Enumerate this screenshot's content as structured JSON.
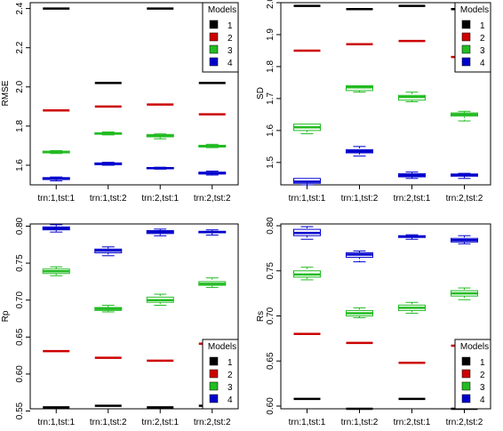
{
  "chart_data": [
    {
      "type": "boxplot",
      "ylabel": "RMSE",
      "ylim": [
        1.5,
        2.43
      ],
      "yticks": [
        1.6,
        1.8,
        2.0,
        2.2,
        2.4
      ],
      "ytick_labels": [
        "1.6",
        "1.8",
        "2.0",
        "2.2",
        "2.4"
      ],
      "categories": [
        "trn:1,tst:1",
        "trn:1,tst:2",
        "trn:2,tst:1",
        "trn:2,tst:2"
      ],
      "legend": {
        "title": "Models",
        "position": "top-right"
      },
      "series": [
        {
          "name": "1",
          "color": "#000000",
          "boxes": [
            {
              "min": 2.4,
              "q1": 2.4,
              "median": 2.4,
              "q3": 2.4,
              "max": 2.4
            },
            {
              "min": 2.02,
              "q1": 2.02,
              "median": 2.02,
              "q3": 2.02,
              "max": 2.02
            },
            {
              "min": 2.4,
              "q1": 2.4,
              "median": 2.4,
              "q3": 2.4,
              "max": 2.4
            },
            {
              "min": 2.02,
              "q1": 2.02,
              "median": 2.02,
              "q3": 2.02,
              "max": 2.02
            }
          ]
        },
        {
          "name": "2",
          "color": "#cc0000",
          "boxes": [
            {
              "min": 1.88,
              "q1": 1.88,
              "median": 1.88,
              "q3": 1.88,
              "max": 1.88
            },
            {
              "min": 1.9,
              "q1": 1.9,
              "median": 1.9,
              "q3": 1.9,
              "max": 1.9
            },
            {
              "min": 1.91,
              "q1": 1.91,
              "median": 1.91,
              "q3": 1.91,
              "max": 1.91
            },
            {
              "min": 1.86,
              "q1": 1.86,
              "median": 1.86,
              "q3": 1.86,
              "max": 1.86
            }
          ]
        },
        {
          "name": "3",
          "color": "#22bb22",
          "boxes": [
            {
              "min": 1.66,
              "q1": 1.663,
              "median": 1.667,
              "q3": 1.672,
              "max": 1.675
            },
            {
              "min": 1.755,
              "q1": 1.758,
              "median": 1.762,
              "q3": 1.766,
              "max": 1.77
            },
            {
              "min": 1.735,
              "q1": 1.745,
              "median": 1.75,
              "q3": 1.757,
              "max": 1.76
            },
            {
              "min": 1.69,
              "q1": 1.693,
              "median": 1.697,
              "q3": 1.702,
              "max": 1.707
            }
          ]
        },
        {
          "name": "4",
          "color": "#0000cc",
          "boxes": [
            {
              "min": 1.52,
              "q1": 1.527,
              "median": 1.532,
              "q3": 1.537,
              "max": 1.54
            },
            {
              "min": 1.6,
              "q1": 1.603,
              "median": 1.607,
              "q3": 1.612,
              "max": 1.615
            },
            {
              "min": 1.58,
              "q1": 1.582,
              "median": 1.585,
              "q3": 1.588,
              "max": 1.59
            },
            {
              "min": 1.55,
              "q1": 1.555,
              "median": 1.56,
              "q3": 1.565,
              "max": 1.57
            }
          ]
        }
      ]
    },
    {
      "type": "boxplot",
      "ylabel": "SD",
      "ylim": [
        1.43,
        2.0
      ],
      "yticks": [
        1.5,
        1.6,
        1.7,
        1.8,
        1.9,
        2.0
      ],
      "ytick_labels": [
        "1.5",
        "1.6",
        "1.7",
        "1.8",
        "1.9",
        "2.0"
      ],
      "categories": [
        "trn:1,tst:1",
        "trn:1,tst:2",
        "trn:2,tst:1",
        "trn:2,tst:2"
      ],
      "legend": {
        "title": "Models",
        "position": "top-right"
      },
      "series": [
        {
          "name": "1",
          "color": "#000000",
          "boxes": [
            {
              "min": 1.99,
              "q1": 1.99,
              "median": 1.99,
              "q3": 1.99,
              "max": 1.99
            },
            {
              "min": 1.98,
              "q1": 1.98,
              "median": 1.98,
              "q3": 1.98,
              "max": 1.98
            },
            {
              "min": 1.99,
              "q1": 1.99,
              "median": 1.99,
              "q3": 1.99,
              "max": 1.99
            },
            {
              "min": 1.98,
              "q1": 1.98,
              "median": 1.98,
              "q3": 1.98,
              "max": 1.98
            }
          ]
        },
        {
          "name": "2",
          "color": "#cc0000",
          "boxes": [
            {
              "min": 1.85,
              "q1": 1.85,
              "median": 1.85,
              "q3": 1.85,
              "max": 1.85
            },
            {
              "min": 1.87,
              "q1": 1.87,
              "median": 1.87,
              "q3": 1.87,
              "max": 1.87
            },
            {
              "min": 1.88,
              "q1": 1.88,
              "median": 1.88,
              "q3": 1.88,
              "max": 1.88
            },
            {
              "min": 1.83,
              "q1": 1.83,
              "median": 1.83,
              "q3": 1.83,
              "max": 1.83
            }
          ]
        },
        {
          "name": "3",
          "color": "#22bb22",
          "boxes": [
            {
              "min": 1.59,
              "q1": 1.6,
              "median": 1.61,
              "q3": 1.62,
              "max": 1.62
            },
            {
              "min": 1.72,
              "q1": 1.725,
              "median": 1.735,
              "q3": 1.74,
              "max": 1.74
            },
            {
              "min": 1.69,
              "q1": 1.695,
              "median": 1.705,
              "q3": 1.71,
              "max": 1.72
            },
            {
              "min": 1.63,
              "q1": 1.645,
              "median": 1.65,
              "q3": 1.655,
              "max": 1.66
            }
          ]
        },
        {
          "name": "4",
          "color": "#0000cc",
          "boxes": [
            {
              "min": 1.43,
              "q1": 1.435,
              "median": 1.44,
              "q3": 1.45,
              "max": 1.45
            },
            {
              "min": 1.52,
              "q1": 1.53,
              "median": 1.535,
              "q3": 1.54,
              "max": 1.55
            },
            {
              "min": 1.45,
              "q1": 1.455,
              "median": 1.46,
              "q3": 1.465,
              "max": 1.47
            },
            {
              "min": 1.45,
              "q1": 1.457,
              "median": 1.46,
              "q3": 1.464,
              "max": 1.466
            }
          ]
        }
      ]
    },
    {
      "type": "boxplot",
      "ylabel": "Rp",
      "ylim": [
        0.553,
        0.803
      ],
      "yticks": [
        0.55,
        0.6,
        0.65,
        0.7,
        0.75,
        0.8
      ],
      "ytick_labels": [
        "0.55",
        "0.60",
        "0.65",
        "0.70",
        "0.75",
        "0.80"
      ],
      "categories": [
        "trn:1,tst:1",
        "trn:1,tst:2",
        "trn:2,tst:1",
        "trn:2,tst:2"
      ],
      "legend": {
        "title": "Models",
        "position": "bottom-right"
      },
      "series": [
        {
          "name": "1",
          "color": "#000000",
          "boxes": [
            {
              "min": 0.555,
              "q1": 0.555,
              "median": 0.555,
              "q3": 0.555,
              "max": 0.555
            },
            {
              "min": 0.557,
              "q1": 0.557,
              "median": 0.557,
              "q3": 0.557,
              "max": 0.557
            },
            {
              "min": 0.555,
              "q1": 0.555,
              "median": 0.555,
              "q3": 0.555,
              "max": 0.555
            },
            {
              "min": 0.557,
              "q1": 0.557,
              "median": 0.557,
              "q3": 0.557,
              "max": 0.557
            }
          ]
        },
        {
          "name": "2",
          "color": "#cc0000",
          "boxes": [
            {
              "min": 0.631,
              "q1": 0.631,
              "median": 0.631,
              "q3": 0.631,
              "max": 0.631
            },
            {
              "min": 0.622,
              "q1": 0.622,
              "median": 0.622,
              "q3": 0.622,
              "max": 0.622
            },
            {
              "min": 0.618,
              "q1": 0.618,
              "median": 0.618,
              "q3": 0.618,
              "max": 0.618
            },
            {
              "min": 0.641,
              "q1": 0.641,
              "median": 0.641,
              "q3": 0.641,
              "max": 0.641
            }
          ]
        },
        {
          "name": "3",
          "color": "#22bb22",
          "boxes": [
            {
              "min": 0.733,
              "q1": 0.736,
              "median": 0.739,
              "q3": 0.742,
              "max": 0.745
            },
            {
              "min": 0.684,
              "q1": 0.686,
              "median": 0.688,
              "q3": 0.69,
              "max": 0.693
            },
            {
              "min": 0.693,
              "q1": 0.697,
              "median": 0.7,
              "q3": 0.704,
              "max": 0.708
            },
            {
              "min": 0.717,
              "q1": 0.72,
              "median": 0.722,
              "q3": 0.725,
              "max": 0.73
            }
          ]
        },
        {
          "name": "4",
          "color": "#0000cc",
          "boxes": [
            {
              "min": 0.792,
              "q1": 0.795,
              "median": 0.797,
              "q3": 0.799,
              "max": 0.802
            },
            {
              "min": 0.76,
              "q1": 0.764,
              "median": 0.767,
              "q3": 0.769,
              "max": 0.772
            },
            {
              "min": 0.787,
              "q1": 0.79,
              "median": 0.792,
              "q3": 0.794,
              "max": 0.796
            },
            {
              "min": 0.788,
              "q1": 0.791,
              "median": 0.792,
              "q3": 0.793,
              "max": 0.795
            }
          ]
        }
      ]
    },
    {
      "type": "boxplot",
      "ylabel": "Rs",
      "ylim": [
        0.597,
        0.802
      ],
      "yticks": [
        0.6,
        0.65,
        0.7,
        0.75,
        0.8
      ],
      "ytick_labels": [
        "0.60",
        "0.65",
        "0.70",
        "0.75",
        "0.80"
      ],
      "categories": [
        "trn:1,tst:1",
        "trn:1,tst:2",
        "trn:2,tst:1",
        "trn:2,tst:2"
      ],
      "legend": {
        "title": "Models",
        "position": "bottom-right"
      },
      "series": [
        {
          "name": "1",
          "color": "#000000",
          "boxes": [
            {
              "min": 0.608,
              "q1": 0.608,
              "median": 0.608,
              "q3": 0.608,
              "max": 0.608
            },
            {
              "min": 0.597,
              "q1": 0.597,
              "median": 0.597,
              "q3": 0.597,
              "max": 0.597
            },
            {
              "min": 0.608,
              "q1": 0.608,
              "median": 0.608,
              "q3": 0.608,
              "max": 0.608
            },
            {
              "min": 0.597,
              "q1": 0.597,
              "median": 0.597,
              "q3": 0.597,
              "max": 0.597
            }
          ]
        },
        {
          "name": "2",
          "color": "#cc0000",
          "boxes": [
            {
              "min": 0.68,
              "q1": 0.68,
              "median": 0.68,
              "q3": 0.68,
              "max": 0.68
            },
            {
              "min": 0.67,
              "q1": 0.67,
              "median": 0.67,
              "q3": 0.67,
              "max": 0.67
            },
            {
              "min": 0.648,
              "q1": 0.648,
              "median": 0.648,
              "q3": 0.648,
              "max": 0.648
            },
            {
              "min": 0.667,
              "q1": 0.667,
              "median": 0.667,
              "q3": 0.667,
              "max": 0.667
            }
          ]
        },
        {
          "name": "3",
          "color": "#22bb22",
          "boxes": [
            {
              "min": 0.74,
              "q1": 0.743,
              "median": 0.746,
              "q3": 0.75,
              "max": 0.754
            },
            {
              "min": 0.698,
              "q1": 0.7,
              "median": 0.703,
              "q3": 0.706,
              "max": 0.709
            },
            {
              "min": 0.703,
              "q1": 0.706,
              "median": 0.709,
              "q3": 0.712,
              "max": 0.715
            },
            {
              "min": 0.718,
              "q1": 0.722,
              "median": 0.725,
              "q3": 0.728,
              "max": 0.731
            }
          ]
        },
        {
          "name": "4",
          "color": "#0000cc",
          "boxes": [
            {
              "min": 0.785,
              "q1": 0.789,
              "median": 0.792,
              "q3": 0.796,
              "max": 0.799
            },
            {
              "min": 0.76,
              "q1": 0.765,
              "median": 0.768,
              "q3": 0.77,
              "max": 0.772
            },
            {
              "min": 0.785,
              "q1": 0.787,
              "median": 0.788,
              "q3": 0.789,
              "max": 0.79
            },
            {
              "min": 0.78,
              "q1": 0.782,
              "median": 0.784,
              "q3": 0.786,
              "max": 0.789
            }
          ]
        }
      ]
    }
  ]
}
